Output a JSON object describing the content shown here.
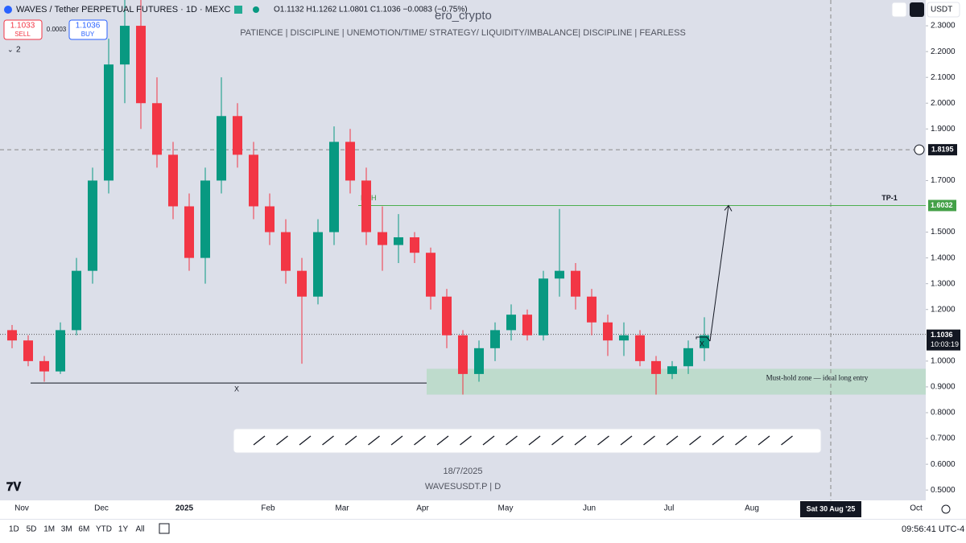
{
  "header": {
    "symbol": "WAVES / Tether PERPETUAL FUTURES · 1D · MEXC",
    "ohlc": "O1.1132 H1.1262 L1.0801 C1.1036 −0.0083 (−0.75%)",
    "sell_price": "1.1033",
    "sell": "SELL",
    "spread": "0.0003",
    "buy_price": "1.1036",
    "buy": "BUY",
    "indicators": "2",
    "currency": "USDT",
    "watermark": "ero_crypto",
    "tagline": "PATIENCE  |  DISCIPLINE  |  UNEMOTION/TIME/ STRATEGY/ LIQUIDITY/IMBALANCE|  DISCIPLINE  |  FEARLESS",
    "date_stamp": "18/7/2025",
    "symbol_stamp": "WAVESUSDT.P  |  D"
  },
  "chart_data": {
    "type": "candlestick",
    "ylim": [
      0.46,
      2.4
    ],
    "yticks": [
      {
        "value": 0.5,
        "label": "0.5000"
      },
      {
        "value": 0.6,
        "label": "0.6000"
      },
      {
        "value": 0.7,
        "label": "0.7000"
      },
      {
        "value": 0.8,
        "label": "0.8000"
      },
      {
        "value": 0.9,
        "label": "0.9000"
      },
      {
        "value": 1.0,
        "label": "1.0000"
      },
      {
        "value": 1.2,
        "label": "1.2000"
      },
      {
        "value": 1.3,
        "label": "1.3000"
      },
      {
        "value": 1.4,
        "label": "1.4000"
      },
      {
        "value": 1.5,
        "label": "1.5000"
      },
      {
        "value": 1.7,
        "label": "1.7000"
      },
      {
        "value": 1.9,
        "label": "1.9000"
      },
      {
        "value": 2.0,
        "label": "2.0000"
      },
      {
        "value": 2.1,
        "label": "2.1000"
      },
      {
        "value": 2.2,
        "label": "2.2000"
      },
      {
        "value": 2.3,
        "label": "2.3000"
      }
    ],
    "x_labels": [
      "Nov",
      "Dec",
      "2025",
      "Feb",
      "Mar",
      "Apr",
      "May",
      "Jun",
      "Jul",
      "Aug",
      "Oct"
    ],
    "up_color": "#089981",
    "down_color": "#f23645",
    "candles": [
      [
        1.12,
        1.14,
        1.05,
        1.08
      ],
      [
        1.08,
        1.1,
        0.98,
        1.0
      ],
      [
        1.0,
        1.02,
        0.92,
        0.96
      ],
      [
        0.96,
        1.15,
        0.95,
        1.12
      ],
      [
        1.12,
        1.4,
        1.1,
        1.35
      ],
      [
        1.35,
        1.75,
        1.3,
        1.7
      ],
      [
        1.7,
        2.25,
        1.65,
        2.15
      ],
      [
        2.15,
        2.4,
        2.0,
        2.3
      ],
      [
        2.3,
        2.4,
        1.9,
        2.0
      ],
      [
        2.0,
        2.1,
        1.75,
        1.8
      ],
      [
        1.8,
        1.85,
        1.55,
        1.6
      ],
      [
        1.6,
        1.65,
        1.35,
        1.4
      ],
      [
        1.4,
        1.75,
        1.3,
        1.7
      ],
      [
        1.7,
        2.1,
        1.65,
        1.95
      ],
      [
        1.95,
        2.0,
        1.75,
        1.8
      ],
      [
        1.8,
        1.85,
        1.55,
        1.6
      ],
      [
        1.6,
        1.65,
        1.45,
        1.5
      ],
      [
        1.5,
        1.55,
        1.3,
        1.35
      ],
      [
        1.35,
        1.4,
        0.99,
        1.25
      ],
      [
        1.25,
        1.55,
        1.22,
        1.5
      ],
      [
        1.5,
        1.91,
        1.45,
        1.85
      ],
      [
        1.85,
        1.9,
        1.65,
        1.7
      ],
      [
        1.7,
        1.75,
        1.45,
        1.5
      ],
      [
        1.5,
        1.6,
        1.35,
        1.45
      ],
      [
        1.45,
        1.57,
        1.38,
        1.48
      ],
      [
        1.48,
        1.5,
        1.38,
        1.42
      ],
      [
        1.42,
        1.44,
        1.2,
        1.25
      ],
      [
        1.25,
        1.28,
        1.05,
        1.1
      ],
      [
        1.1,
        1.12,
        0.87,
        0.95
      ],
      [
        0.95,
        1.08,
        0.92,
        1.05
      ],
      [
        1.05,
        1.15,
        1.0,
        1.12
      ],
      [
        1.12,
        1.22,
        1.08,
        1.18
      ],
      [
        1.18,
        1.2,
        1.08,
        1.1
      ],
      [
        1.1,
        1.35,
        1.08,
        1.32
      ],
      [
        1.32,
        1.59,
        1.25,
        1.35
      ],
      [
        1.35,
        1.38,
        1.2,
        1.25
      ],
      [
        1.25,
        1.28,
        1.1,
        1.15
      ],
      [
        1.15,
        1.18,
        1.02,
        1.08
      ],
      [
        1.08,
        1.15,
        1.02,
        1.1
      ],
      [
        1.1,
        1.12,
        0.98,
        1.0
      ],
      [
        1.0,
        1.02,
        0.87,
        0.95
      ],
      [
        0.95,
        1.0,
        0.93,
        0.98
      ],
      [
        0.98,
        1.08,
        0.95,
        1.05
      ],
      [
        1.05,
        1.17,
        1.0,
        1.1
      ]
    ],
    "tp": {
      "label": "TP-1",
      "value": 1.6032,
      "eqh": "EQH"
    },
    "current": {
      "value": 1.1036,
      "timer": "10:03:19"
    },
    "crosshair": {
      "value": 1.8195,
      "date": "Sat 30 Aug '25"
    },
    "zone": {
      "low": 0.87,
      "high": 0.97,
      "label": "Must-hold zone — ideal long entry"
    },
    "support": {
      "value": 0.915,
      "label": "X"
    },
    "retest": {
      "value": 1.04,
      "label": "X"
    }
  },
  "footer": {
    "ranges": [
      "1D",
      "5D",
      "1M",
      "3M",
      "6M",
      "YTD",
      "1Y",
      "All"
    ],
    "clock": "09:56:41 UTC-4"
  }
}
